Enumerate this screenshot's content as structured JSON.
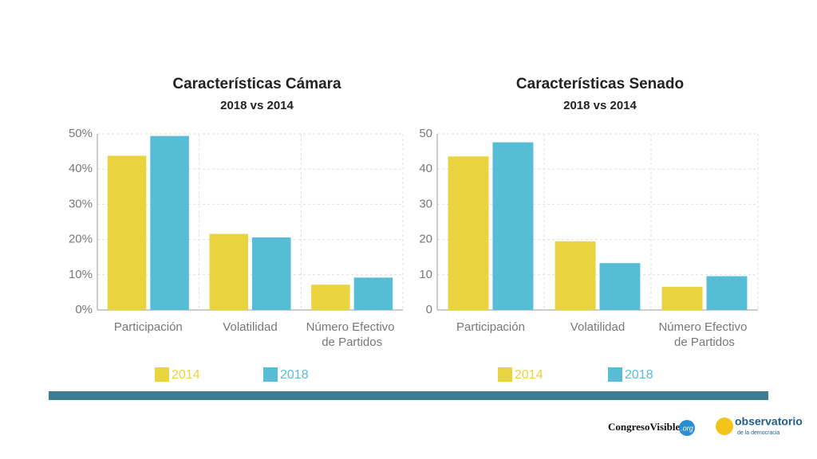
{
  "chart_data": [
    {
      "type": "bar",
      "title": "Características Cámara",
      "subtitle": "2018 vs 2014",
      "categories": [
        "Participación",
        "Volatilidad",
        "Número Efectivo de Partidos"
      ],
      "series": [
        {
          "name": "2014",
          "color": "#e9d33e",
          "values": [
            43.8,
            21.6,
            7.2
          ]
        },
        {
          "name": "2018",
          "color": "#57bcd6",
          "values": [
            49.4,
            20.6,
            9.2
          ]
        }
      ],
      "ylim": [
        0,
        50
      ],
      "yticks": [
        {
          "value": 0,
          "label": "0%"
        },
        {
          "value": 10,
          "label": "10%"
        },
        {
          "value": 20,
          "label": "20%"
        },
        {
          "value": 30,
          "label": "30%"
        },
        {
          "value": 40,
          "label": "40%"
        },
        {
          "value": 50,
          "label": "50%"
        }
      ],
      "grid": true
    },
    {
      "type": "bar",
      "title": "Características Senado",
      "subtitle": "2018 vs 2014",
      "categories": [
        "Participación",
        "Volatilidad",
        "Número Efectivo de Partidos"
      ],
      "series": [
        {
          "name": "2014",
          "color": "#e9d33e",
          "values": [
            43.6,
            19.5,
            6.6
          ]
        },
        {
          "name": "2018",
          "color": "#57bcd6",
          "values": [
            47.6,
            13.3,
            9.6
          ]
        }
      ],
      "ylim": [
        0,
        50
      ],
      "yticks": [
        0,
        10,
        20,
        30,
        40,
        50
      ],
      "grid": true
    }
  ],
  "logos": {
    "congreso": "CongresoVisible",
    "congreso_suffix": ".org",
    "observatorio": "observatorio",
    "observatorio_sub": "de la democracia"
  }
}
